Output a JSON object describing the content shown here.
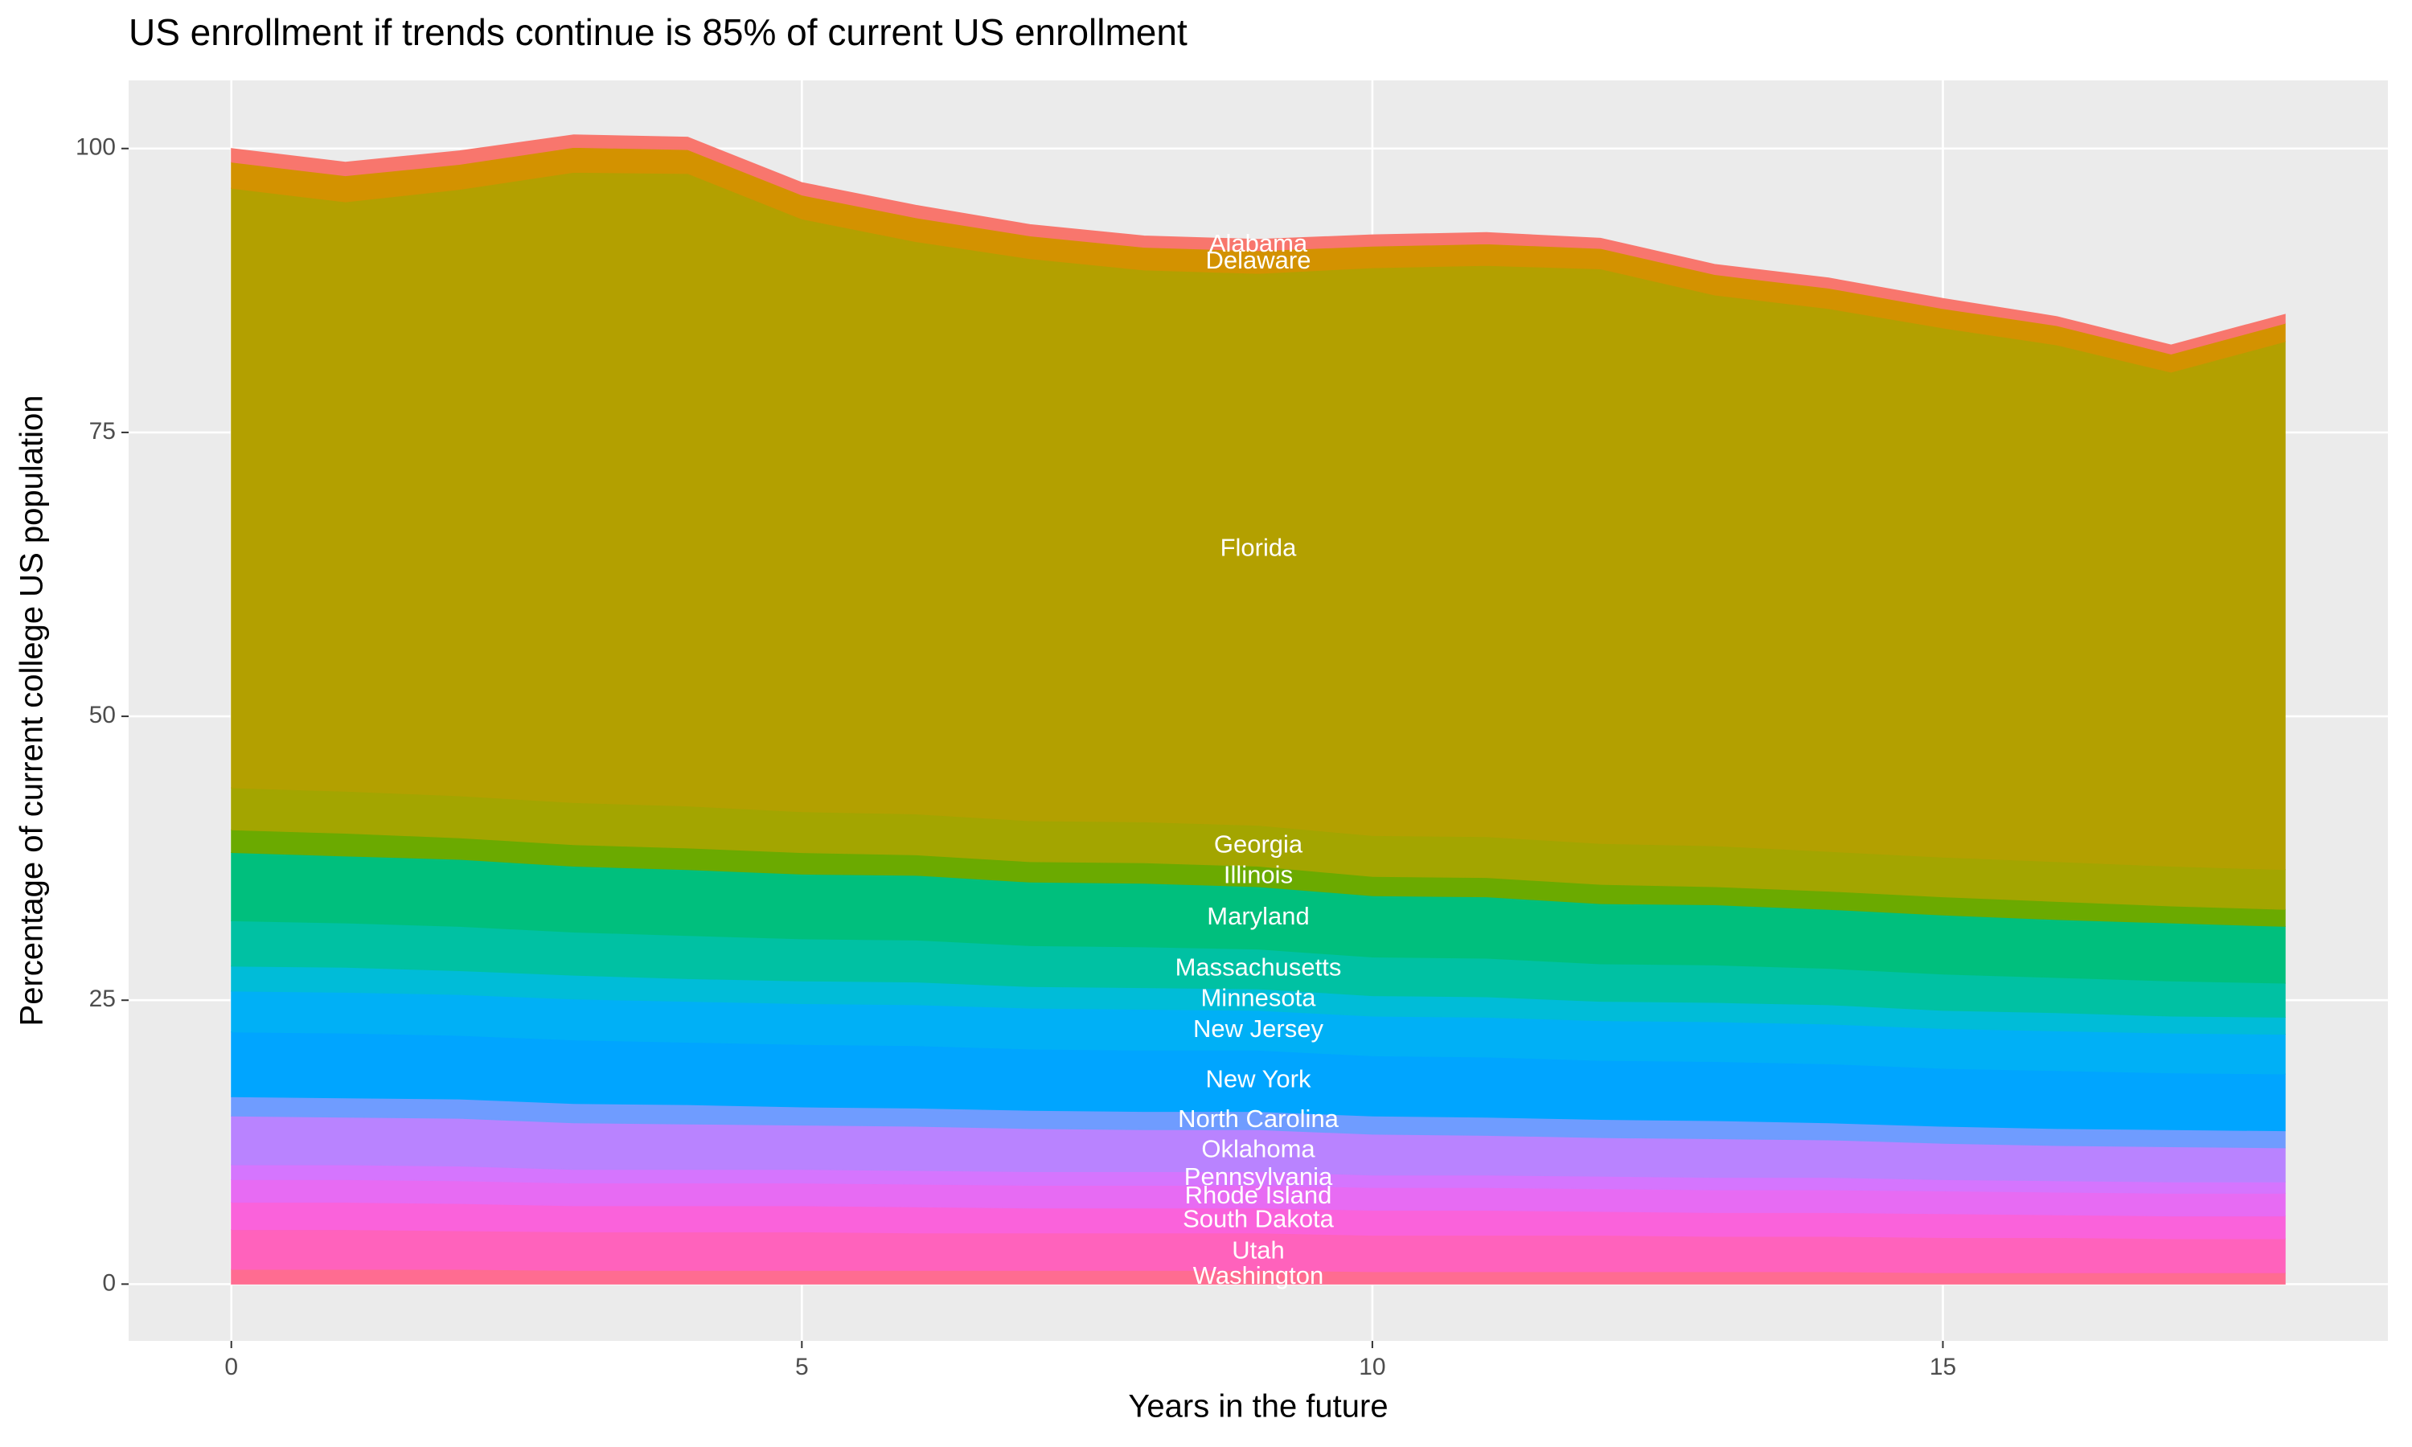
{
  "chart_data": {
    "type": "area",
    "title": "US enrollment if trends continue is 85% of current US enrollment",
    "x_label": "Years in the future",
    "y_label": "Percentage of current college US population",
    "x": [
      0,
      1,
      2,
      3,
      4,
      5,
      6,
      7,
      8,
      9,
      10,
      11,
      12,
      13,
      14,
      15,
      16,
      17,
      18
    ],
    "xlim": [
      -0.9,
      18.9
    ],
    "xticks": [
      0,
      5,
      10,
      15
    ],
    "ylim": [
      -5,
      106
    ],
    "yticks": [
      0,
      25,
      50,
      75,
      100
    ],
    "grid": true,
    "stacked": true,
    "label_x": 9,
    "series": [
      {
        "name": "Washington",
        "color": "#FF6C91",
        "values": [
          1.3,
          1.3,
          1.3,
          1.2,
          1.2,
          1.2,
          1.2,
          1.2,
          1.2,
          1.2,
          1.1,
          1.1,
          1.1,
          1.1,
          1.1,
          1.0,
          1.0,
          1.0,
          1.0
        ]
      },
      {
        "name": "Utah",
        "color": "#FF62BC",
        "values": [
          3.5,
          3.5,
          3.4,
          3.4,
          3.4,
          3.4,
          3.3,
          3.3,
          3.3,
          3.3,
          3.2,
          3.2,
          3.2,
          3.1,
          3.1,
          3.1,
          3.1,
          3.0,
          3.0
        ]
      },
      {
        "name": "South Dakota",
        "color": "#FA62DB",
        "values": [
          2.4,
          2.4,
          2.4,
          2.3,
          2.3,
          2.3,
          2.3,
          2.2,
          2.2,
          2.2,
          2.2,
          2.2,
          2.1,
          2.1,
          2.1,
          2.1,
          2.0,
          2.0,
          2.0
        ]
      },
      {
        "name": "Rhode Island",
        "color": "#E76BF3",
        "values": [
          2.0,
          2.0,
          2.0,
          2.0,
          2.0,
          2.0,
          2.0,
          2.0,
          2.0,
          2.0,
          2.0,
          2.0,
          2.0,
          2.0,
          2.0,
          2.0,
          2.0,
          2.0,
          2.0
        ]
      },
      {
        "name": "Pennsylvania",
        "color": "#D575FE",
        "values": [
          1.3,
          1.3,
          1.3,
          1.2,
          1.2,
          1.2,
          1.2,
          1.2,
          1.2,
          1.2,
          1.1,
          1.1,
          1.1,
          1.1,
          1.1,
          1.0,
          1.0,
          1.0,
          1.0
        ]
      },
      {
        "name": "Oklahoma",
        "color": "#B983FF",
        "values": [
          4.3,
          4.2,
          4.2,
          4.1,
          4.0,
          3.9,
          3.9,
          3.8,
          3.7,
          3.7,
          3.6,
          3.5,
          3.4,
          3.4,
          3.3,
          3.2,
          3.1,
          3.1,
          3.0
        ]
      },
      {
        "name": "North Carolina",
        "color": "#6F9CFF",
        "values": [
          1.7,
          1.7,
          1.7,
          1.7,
          1.7,
          1.6,
          1.6,
          1.6,
          1.6,
          1.6,
          1.6,
          1.6,
          1.6,
          1.6,
          1.5,
          1.5,
          1.5,
          1.5,
          1.5
        ]
      },
      {
        "name": "New York",
        "color": "#00A5FF",
        "values": [
          5.7,
          5.7,
          5.6,
          5.6,
          5.5,
          5.5,
          5.5,
          5.4,
          5.4,
          5.4,
          5.3,
          5.3,
          5.2,
          5.2,
          5.2,
          5.1,
          5.1,
          5.0,
          5.0
        ]
      },
      {
        "name": "New Jersey",
        "color": "#00B0F6",
        "values": [
          3.6,
          3.6,
          3.6,
          3.6,
          3.6,
          3.6,
          3.6,
          3.6,
          3.6,
          3.5,
          3.5,
          3.5,
          3.5,
          3.5,
          3.5,
          3.5,
          3.5,
          3.5,
          3.5
        ]
      },
      {
        "name": "Minnesota",
        "color": "#00BCD8",
        "values": [
          2.2,
          2.2,
          2.1,
          2.1,
          2.0,
          2.0,
          2.0,
          1.9,
          1.9,
          1.9,
          1.8,
          1.8,
          1.7,
          1.7,
          1.7,
          1.6,
          1.6,
          1.5,
          1.5
        ]
      },
      {
        "name": "Massachusetts",
        "color": "#00C1A3",
        "values": [
          4.0,
          3.9,
          3.9,
          3.8,
          3.8,
          3.7,
          3.7,
          3.6,
          3.6,
          3.5,
          3.4,
          3.4,
          3.3,
          3.3,
          3.2,
          3.2,
          3.1,
          3.1,
          3.0
        ]
      },
      {
        "name": "Maryland",
        "color": "#00BF7D",
        "values": [
          6.0,
          5.9,
          5.9,
          5.8,
          5.8,
          5.7,
          5.7,
          5.6,
          5.6,
          5.5,
          5.4,
          5.4,
          5.3,
          5.3,
          5.2,
          5.2,
          5.1,
          5.1,
          5.0
        ]
      },
      {
        "name": "Illinois",
        "color": "#6BAA00",
        "values": [
          2.0,
          2.0,
          1.9,
          1.9,
          1.9,
          1.9,
          1.8,
          1.8,
          1.8,
          1.8,
          1.7,
          1.7,
          1.7,
          1.6,
          1.6,
          1.6,
          1.6,
          1.5,
          1.5
        ]
      },
      {
        "name": "Georgia",
        "color": "#A3A500",
        "values": [
          3.7,
          3.7,
          3.7,
          3.7,
          3.7,
          3.6,
          3.6,
          3.6,
          3.6,
          3.6,
          3.6,
          3.6,
          3.6,
          3.6,
          3.5,
          3.5,
          3.5,
          3.5,
          3.5
        ]
      },
      {
        "name": "Florida",
        "color": "#B3A000",
        "values": [
          52.8,
          51.9,
          53.4,
          55.5,
          55.7,
          52.2,
          50.4,
          49.5,
          48.6,
          48.6,
          50.0,
          50.3,
          50.6,
          48.5,
          47.8,
          46.6,
          45.5,
          43.5,
          46.5
        ]
      },
      {
        "name": "Delaware",
        "color": "#D39200",
        "values": [
          2.3,
          2.3,
          2.2,
          2.2,
          2.1,
          2.1,
          2.1,
          2.0,
          2.0,
          2.0,
          1.9,
          1.9,
          1.8,
          1.8,
          1.8,
          1.7,
          1.7,
          1.6,
          1.6
        ]
      },
      {
        "name": "Alabama",
        "color": "#F8766D",
        "values": [
          1.2,
          1.2,
          1.2,
          1.1,
          1.1,
          1.1,
          1.1,
          1.0,
          1.0,
          1.0,
          1.0,
          1.0,
          0.9,
          0.9,
          0.9,
          0.9,
          0.8,
          0.8,
          0.8
        ]
      }
    ]
  }
}
